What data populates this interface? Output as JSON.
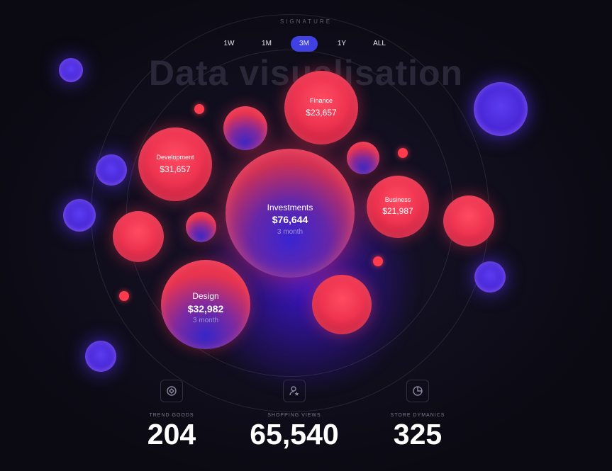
{
  "header": {
    "signature": "SIGNATURE",
    "title": "Data visualisation"
  },
  "tabs": [
    {
      "label": "1W",
      "active": false
    },
    {
      "label": "1M",
      "active": false
    },
    {
      "label": "3M",
      "active": true
    },
    {
      "label": "1Y",
      "active": false
    },
    {
      "label": "ALL",
      "active": false
    }
  ],
  "bubbles": {
    "investments": {
      "name": "Investments",
      "value": "$76,644",
      "period": "3 month"
    },
    "design": {
      "name": "Design",
      "value": "$32,982",
      "period": "3 month"
    },
    "development": {
      "name": "Development",
      "value": "$31,657"
    },
    "finance": {
      "name": "Finance",
      "value": "$23,657"
    },
    "business": {
      "name": "Business",
      "value": "$21,987"
    }
  },
  "stats": [
    {
      "label": "TREND GOODS",
      "value": "204",
      "icon": "trend-goods-icon"
    },
    {
      "label": "SHOPPING VIEWS",
      "value": "65,540",
      "icon": "user-star-icon"
    },
    {
      "label": "STORE DYMANICS",
      "value": "325",
      "icon": "pie-chart-icon"
    }
  ],
  "colors": {
    "background": "#0c0b13",
    "accent": "#4041e3",
    "bubble_red": "#ee3450",
    "bubble_blue": "#5b3cf0"
  }
}
